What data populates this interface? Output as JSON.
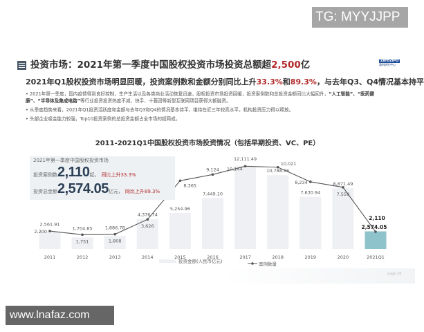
{
  "watermark_top": "TG: MYYJJPP",
  "watermark_bottom": "www.lnafaz.com",
  "header": {
    "title_pre": "投资市场：2021年第一季度中国股权投资市场投资总额超",
    "title_hl": "2,500",
    "title_post": "亿",
    "logo_text": "清科研究中心"
  },
  "subtitle": {
    "pre": "2021年Q1股权投资市场明显回暖，投资案例数和金额分别同比上升",
    "hl1": "33.3%",
    "mid": "和",
    "hl2": "89.3%",
    "post": "，与去年Q3、Q4情况基本持平"
  },
  "bullets": [
    {
      "pre": "2021年第一季度，国内疫情得到良好控制，生产生活以及各类商业活动恢复迅速，股权投资市场投资回暖，投资案例数和总投资金额同比大幅回升，",
      "b1": "“人工智能”、“医药健康”、“半导体及集成电路”",
      "post": "等行业投资投资热度不减，快手、十荟团等新型互联网项目获得大额融资。"
    },
    {
      "text": "从季度趋势来看，2021年Q1投资活跃度和金额与去年Q3和Q4的情况基本持平，维持在近三年较高水平，机构投资压力得以释放。"
    },
    {
      "text": "头部企业吸金能力较强，Top10投资案例的总投资金额占全市场的超两成。"
    }
  ],
  "infobox": {
    "heading": "2021年第一季度中国股权投资市场",
    "cases_label": "投资案例数",
    "cases_value": "2,110",
    "cases_unit": "起，",
    "cases_growth": "同比上升33.3%",
    "amount_label": "投资总金额",
    "amount_value": "2,574.05",
    "amount_unit": "亿元，",
    "amount_growth": "同比上升89.3%"
  },
  "page": "page 26",
  "chart_data": {
    "type": "bar+line",
    "title": "2011-2021Q1中国股权投资市场投资情况（包括早期投资、VC、PE）",
    "categories": [
      "2011",
      "2012",
      "2013",
      "2014",
      "2015",
      "2016",
      "2017",
      "2018",
      "2019",
      "2020",
      "2021Q1"
    ],
    "series": [
      {
        "name": "投资金额(人民币亿元)",
        "type": "bar",
        "values": [
          2561.91,
          1704.85,
          1886.78,
          4376.74,
          5254.96,
          7449.1,
          12111.49,
          10788.06,
          7630.94,
          8871.49,
          2574.05
        ],
        "labels": [
          "2,561.91",
          "1,704.85",
          "1,886.78",
          "4,376.74",
          "5,254.96",
          "7,449.10",
          "12,111.49",
          "10,788.06",
          "7,630.94",
          "8,871.49",
          "2,574.05"
        ],
        "color": "#eef0f3",
        "highlight_color": "#8fc3cc"
      },
      {
        "name": "案例数量",
        "type": "line",
        "values": [
          2200,
          1751,
          1808,
          3626,
          8365,
          9124,
          10144,
          10021,
          8234,
          7559,
          2110
        ],
        "labels": [
          "2,200",
          "1,751",
          "1,808",
          "3,626",
          "8,365",
          "9,124",
          "10,144",
          "10,021",
          "8,234",
          "7,559",
          "2,110"
        ],
        "color": "#555555"
      }
    ],
    "legend": "bottom"
  }
}
